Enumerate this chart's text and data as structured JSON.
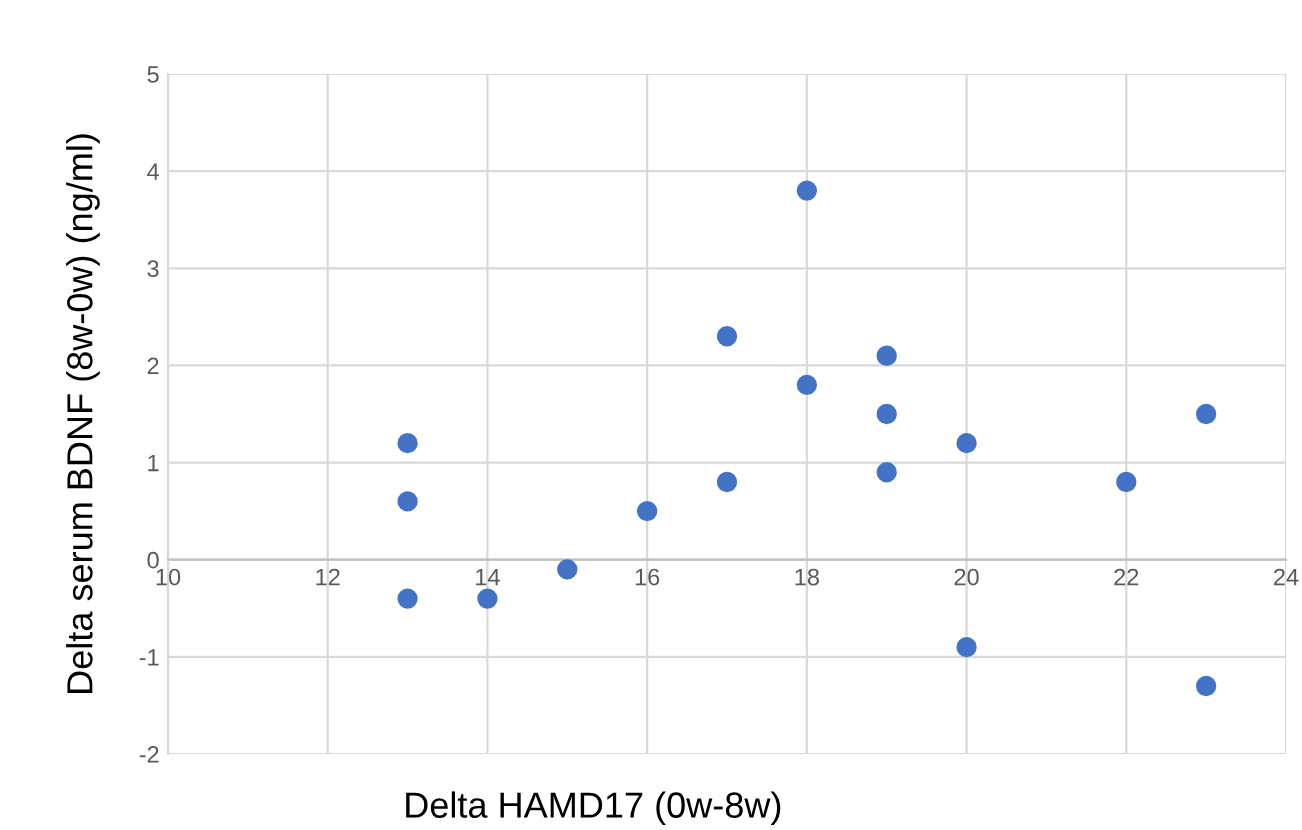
{
  "chart_data": {
    "type": "scatter",
    "xlabel": "Delta HAMD17 (0w-8w)",
    "ylabel": "Delta serum BDNF (8w-0w) (ng/ml)",
    "x": [
      13,
      13,
      13,
      14,
      15,
      16,
      17,
      17,
      18,
      18,
      19,
      19,
      19,
      20,
      20,
      22,
      23,
      23
    ],
    "values": [
      1.2,
      0.6,
      -0.4,
      -0.4,
      -0.1,
      0.5,
      2.3,
      0.8,
      3.8,
      1.8,
      2.1,
      1.5,
      0.9,
      1.2,
      -0.9,
      0.8,
      1.5,
      -1.3
    ],
    "color": "#4472c4",
    "marker": "circle",
    "xlim": [
      10,
      24
    ],
    "xticks": [
      10,
      12,
      14,
      16,
      18,
      20,
      22,
      24
    ],
    "ylim": [
      -2,
      5
    ],
    "yticks": [
      -2,
      -1,
      0,
      1,
      2,
      3,
      4,
      5
    ],
    "grid": true
  }
}
